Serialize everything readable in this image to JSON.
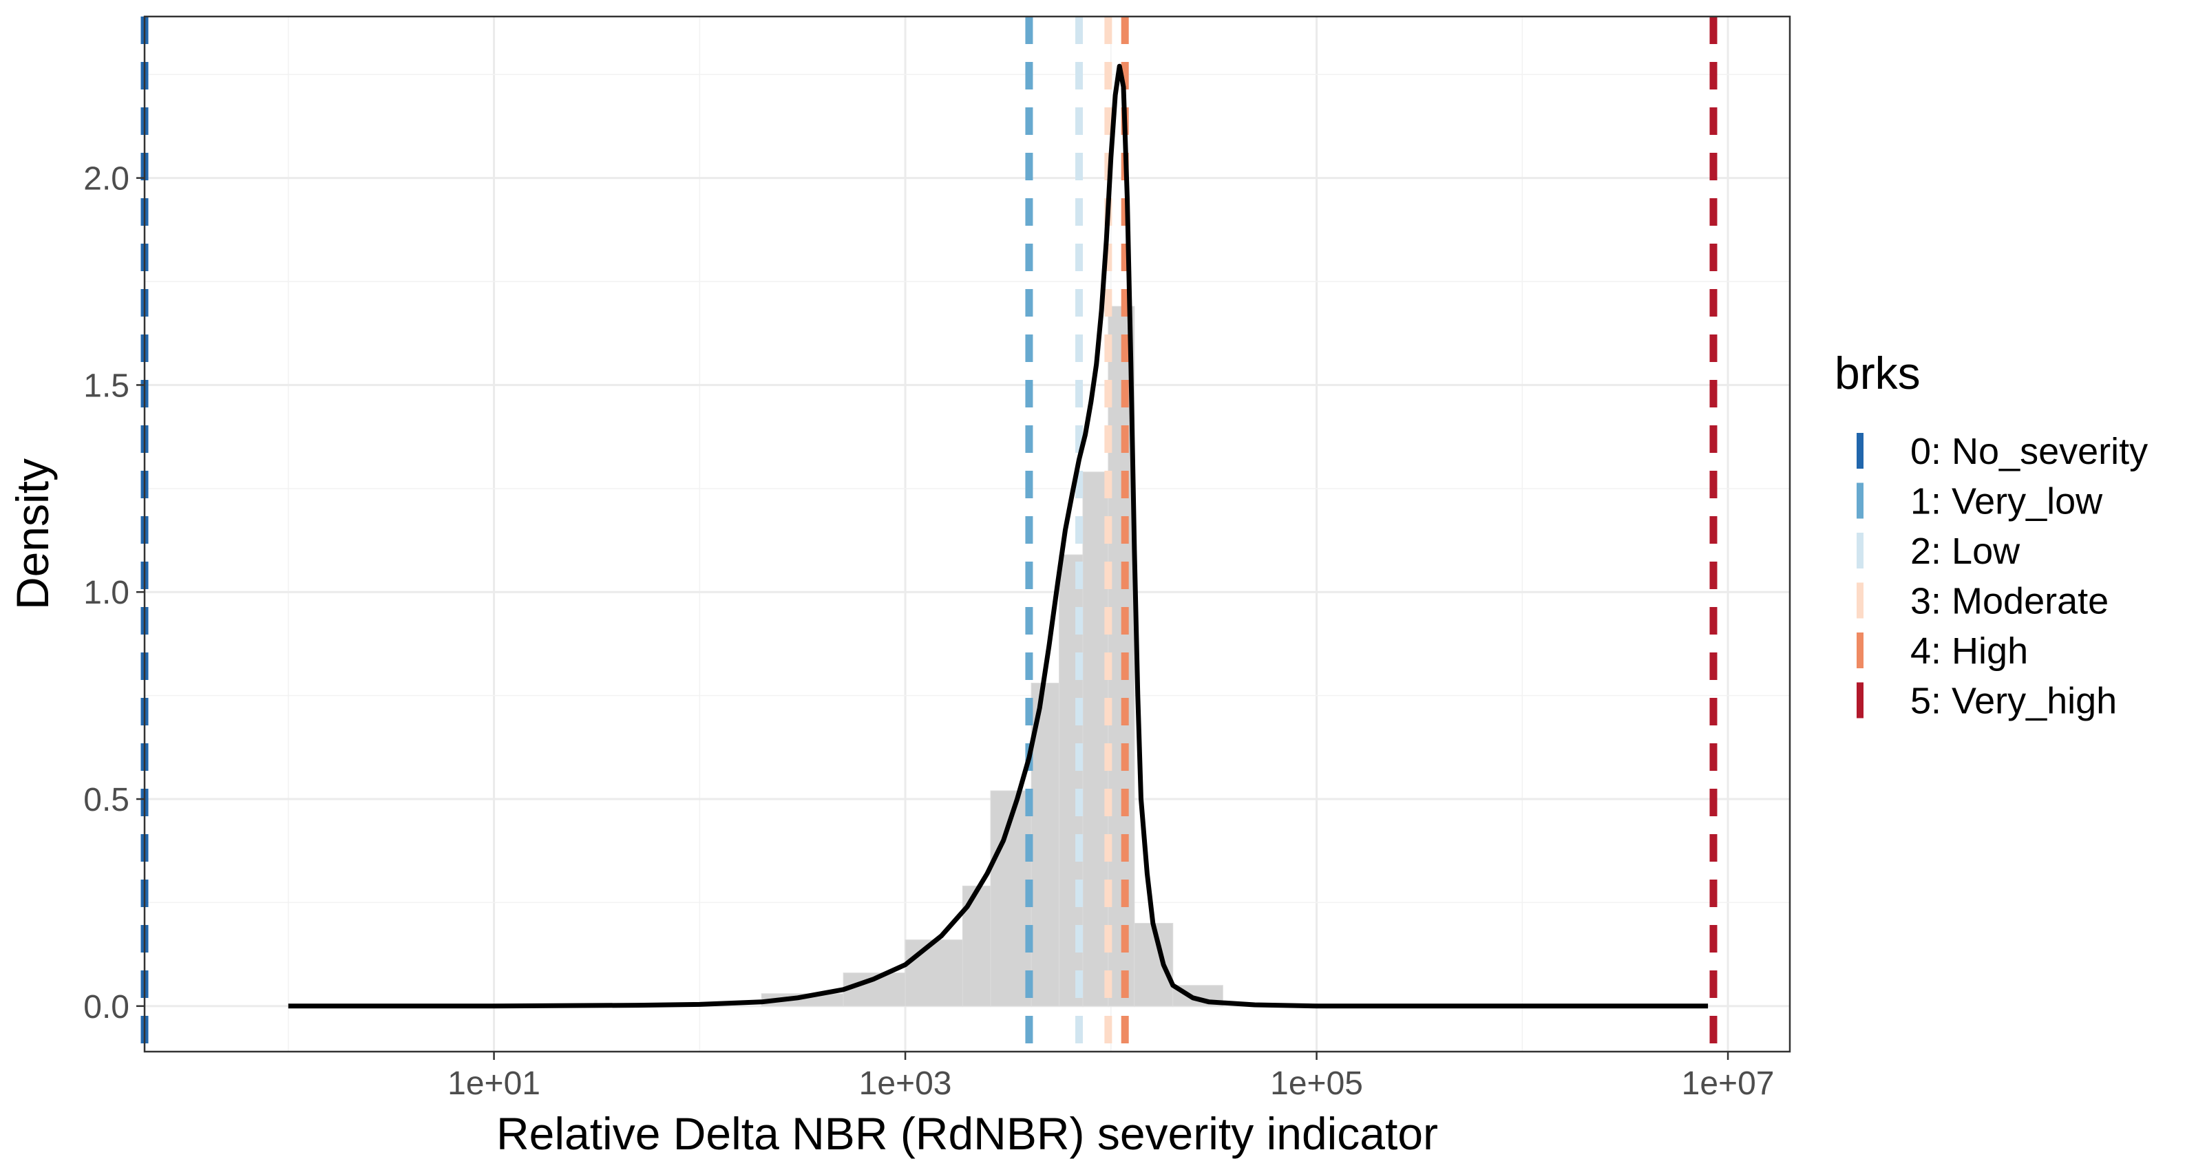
{
  "chart_data": {
    "type": "histogram-density",
    "xlabel": "Relative Delta NBR (RdNBR) severity indicator",
    "ylabel": "Density",
    "x_scale": "log10",
    "xlim": [
      0.2,
      20000000
    ],
    "ylim": [
      -0.11,
      2.39
    ],
    "x_ticks": [
      {
        "value": 10,
        "label": "1e+01"
      },
      {
        "value": 1000,
        "label": "1e+03"
      },
      {
        "value": 100000,
        "label": "1e+05"
      },
      {
        "value": 10000000,
        "label": "1e+07"
      }
    ],
    "y_ticks": [
      {
        "value": 0.0,
        "label": "0.0"
      },
      {
        "value": 0.5,
        "label": "0.5"
      },
      {
        "value": 1.0,
        "label": "1.0"
      },
      {
        "value": 1.5,
        "label": "1.5"
      },
      {
        "value": 2.0,
        "label": "2.0"
      }
    ],
    "grid": true,
    "histogram": {
      "color": "#d3d3d3",
      "bins": [
        {
          "x0": 200,
          "x1": 500,
          "density": 0.03
        },
        {
          "x0": 500,
          "x1": 1000,
          "density": 0.08
        },
        {
          "x0": 1000,
          "x1": 1900,
          "density": 0.16
        },
        {
          "x0": 1900,
          "x1": 2600,
          "density": 0.29
        },
        {
          "x0": 2600,
          "x1": 4100,
          "density": 0.52
        },
        {
          "x0": 4100,
          "x1": 5600,
          "density": 0.78
        },
        {
          "x0": 5600,
          "x1": 7300,
          "density": 1.09
        },
        {
          "x0": 7300,
          "x1": 9700,
          "density": 1.29
        },
        {
          "x0": 9700,
          "x1": 13000,
          "density": 1.69
        },
        {
          "x0": 13000,
          "x1": 20000,
          "density": 0.2
        },
        {
          "x0": 20000,
          "x1": 35000,
          "density": 0.05
        }
      ]
    },
    "density_curve": {
      "color": "#000000",
      "x": [
        1,
        10,
        50,
        100,
        200,
        300,
        500,
        700,
        1000,
        1500,
        2000,
        2500,
        3000,
        3500,
        4000,
        4500,
        5000,
        5500,
        6000,
        6500,
        7000,
        7500,
        8000,
        8500,
        9000,
        9500,
        10000,
        10500,
        11000,
        11500,
        12000,
        12500,
        13000,
        13500,
        14000,
        15000,
        16000,
        18000,
        20000,
        25000,
        30000,
        50000,
        100000,
        1000000,
        8000000
      ],
      "y": [
        0.0,
        0.0,
        0.002,
        0.004,
        0.01,
        0.02,
        0.04,
        0.065,
        0.1,
        0.17,
        0.24,
        0.32,
        0.4,
        0.5,
        0.6,
        0.72,
        0.87,
        1.02,
        1.15,
        1.24,
        1.32,
        1.38,
        1.46,
        1.55,
        1.68,
        1.85,
        2.05,
        2.2,
        2.27,
        2.22,
        1.95,
        1.55,
        1.1,
        0.75,
        0.5,
        0.32,
        0.2,
        0.1,
        0.05,
        0.02,
        0.01,
        0.003,
        0.0,
        0.0,
        0.0
      ]
    },
    "breaks": [
      {
        "label": "0: No_severity",
        "value": 0.2,
        "color": "#2166ac"
      },
      {
        "label": "1: Very_low",
        "value": 4000,
        "color": "#67a9cf"
      },
      {
        "label": "2: Low",
        "value": 7000,
        "color": "#d1e5f0"
      },
      {
        "label": "3: Moderate",
        "value": 9700,
        "color": "#fddbc7"
      },
      {
        "label": "4: High",
        "value": 11700,
        "color": "#ef8a62"
      },
      {
        "label": "5: Very_high",
        "value": 8500000,
        "color": "#b2182b"
      }
    ],
    "legend": {
      "title": "brks",
      "position": "right"
    }
  }
}
